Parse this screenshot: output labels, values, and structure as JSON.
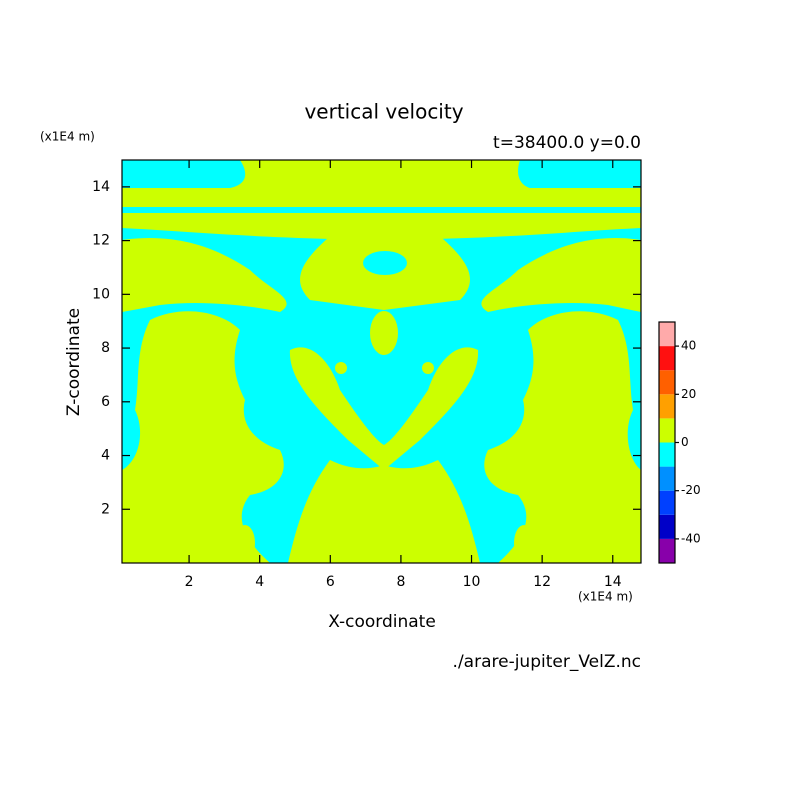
{
  "chart_data": {
    "type": "contour",
    "title": "vertical velocity",
    "subtitle": "t=38400.0 y=0.0",
    "x_label": "X-coordinate",
    "y_label": "Z-coordinate",
    "x_unit": "(x1E4 m)",
    "y_unit": "(x1E4 m)",
    "source": "./arare-jupiter_VelZ.nc",
    "xlim": [
      0.1,
      14.8
    ],
    "ylim": [
      0,
      15
    ],
    "xticks": [
      2,
      4,
      6,
      8,
      10,
      12,
      14
    ],
    "yticks": [
      2,
      4,
      6,
      8,
      10,
      12,
      14
    ],
    "clim": [
      -50,
      50
    ],
    "cticks": [
      -40,
      -20,
      0,
      20,
      40
    ],
    "colors": [
      "#8800aa",
      "#0000c8",
      "#0040ff",
      "#0090ff",
      "#00ffff",
      "#ccff00",
      "#ffa000",
      "#ff6000",
      "#ff1010",
      "#ffaaaa"
    ]
  }
}
